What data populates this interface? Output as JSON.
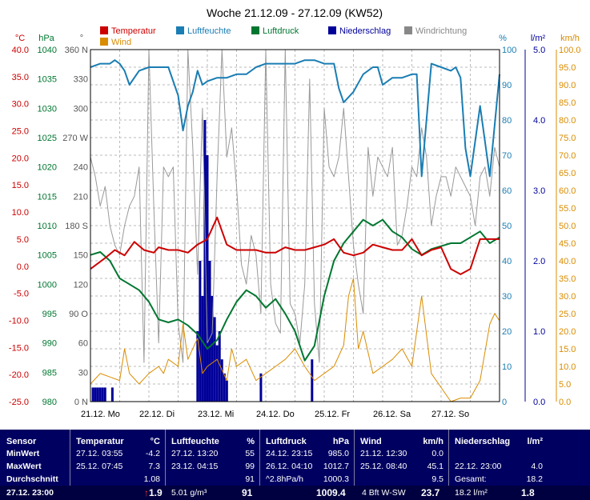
{
  "chart_data": {
    "type": "line",
    "title": "Woche 21.12.09 - 27.12.09 (KW52)",
    "legend": [
      {
        "name": "Temperatur",
        "color": "#cc0000"
      },
      {
        "name": "Luftfeuchte",
        "color": "#1a7db3"
      },
      {
        "name": "Luftdruck",
        "color": "#007730"
      },
      {
        "name": "Niederschlag",
        "color": "#000099"
      },
      {
        "name": "Windrichtung",
        "color": "#888888"
      },
      {
        "name": "Wind",
        "color": "#d98c00"
      }
    ],
    "axes": {
      "temp": {
        "unit": "°C",
        "ticks": [
          "40.0",
          "35.0",
          "30.0",
          "25.0",
          "20.0",
          "15.0",
          "10.0",
          "5.0",
          "0.0",
          "-5.0",
          "-10.0",
          "-15.0",
          "-20.0",
          "-25.0"
        ],
        "range": [
          -25,
          40
        ],
        "color": "#cc0000"
      },
      "press": {
        "unit": "hPa",
        "ticks": [
          "1040",
          "1035",
          "1030",
          "1025",
          "1020",
          "1015",
          "1010",
          "1005",
          "1000",
          "995",
          "990",
          "985",
          "980"
        ],
        "range": [
          980,
          1040
        ],
        "color": "#007730"
      },
      "dir": {
        "unit": "°",
        "ticks": [
          "360 N",
          "330",
          "300",
          "270 W",
          "240",
          "210",
          "180 S",
          "150",
          "120",
          "90 O",
          "60",
          "30",
          "0 N"
        ],
        "range": [
          0,
          360
        ],
        "color": "#555555"
      },
      "hum": {
        "unit": "%",
        "ticks": [
          "100",
          "90",
          "80",
          "70",
          "60",
          "50",
          "40",
          "30",
          "20",
          "10",
          "0"
        ],
        "range": [
          0,
          100
        ],
        "color": "#1a7db3"
      },
      "rain": {
        "unit": "l/m²",
        "ticks": [
          "5.0",
          "4.0",
          "3.0",
          "2.0",
          "1.0",
          "0.0"
        ],
        "range": [
          0,
          5
        ],
        "color": "#000099"
      },
      "wind": {
        "unit": "km/h",
        "ticks": [
          "100.0",
          "95.0",
          "90.0",
          "85.0",
          "80.0",
          "75.0",
          "70.0",
          "65.0",
          "60.0",
          "55.0",
          "50.0",
          "45.0",
          "40.0",
          "35.0",
          "30.0",
          "25.0",
          "20.0",
          "15.0",
          "10.0",
          "5.0",
          "0.0"
        ],
        "range": [
          0,
          100
        ],
        "color": "#d98c00"
      },
      "x": {
        "labels": [
          "21.12.  Mo",
          "22.12.  Di",
          "23.12.  Mi",
          "24.12.  Do",
          "25.12.  Fr",
          "26.12.  Sa",
          "27.12.  So"
        ],
        "range": [
          0,
          168
        ]
      }
    },
    "series": {
      "temperature": {
        "name": "Temperatur",
        "x": [
          0,
          6,
          10,
          14,
          18,
          22,
          26,
          28,
          32,
          36,
          40,
          44,
          48,
          52,
          56,
          60,
          64,
          68,
          72,
          76,
          80,
          84,
          88,
          92,
          96,
          100,
          104,
          108,
          112,
          116,
          120,
          124,
          128,
          132,
          136,
          140,
          144,
          148,
          152,
          156,
          160,
          164,
          168
        ],
        "y": [
          -0.5,
          1.5,
          3,
          2,
          4.5,
          3,
          2.5,
          3.5,
          3,
          3,
          2.5,
          4,
          5,
          9,
          4,
          3,
          3,
          3,
          2.5,
          2.5,
          3.5,
          3,
          3,
          3.5,
          4,
          5,
          2.5,
          2,
          2.5,
          4,
          3.5,
          3,
          3,
          5,
          2,
          3,
          3.5,
          -0.5,
          -1.5,
          -0.5,
          5,
          5,
          5
        ]
      },
      "humidity": {
        "name": "Luftfeuchte",
        "x": [
          0,
          4,
          8,
          10,
          12,
          14,
          16,
          20,
          24,
          28,
          32,
          36,
          38,
          40,
          42,
          44,
          46,
          48,
          52,
          56,
          60,
          64,
          68,
          72,
          76,
          80,
          84,
          88,
          92,
          96,
          100,
          102,
          104,
          108,
          112,
          116,
          118,
          120,
          124,
          128,
          132,
          134,
          136,
          140,
          144,
          148,
          150,
          152,
          154,
          156,
          158,
          160,
          164,
          168
        ],
        "y": [
          95,
          96,
          96,
          97,
          96,
          94,
          90,
          94,
          95,
          95,
          95,
          87,
          77,
          84,
          88,
          94,
          90,
          91,
          92,
          92,
          93,
          93,
          95,
          96,
          96,
          96,
          96,
          97,
          97,
          96,
          96,
          89,
          85,
          88,
          93,
          95,
          95,
          90,
          92,
          92,
          93,
          93,
          64,
          96,
          95,
          94,
          95,
          92,
          72,
          64,
          74,
          84,
          64,
          93
        ]
      },
      "pressure": {
        "name": "Luftdruck",
        "x": [
          0,
          4,
          8,
          12,
          16,
          20,
          24,
          28,
          32,
          36,
          40,
          44,
          48,
          52,
          56,
          60,
          64,
          68,
          72,
          76,
          80,
          84,
          88,
          92,
          96,
          100,
          104,
          108,
          112,
          116,
          120,
          124,
          128,
          132,
          136,
          140,
          144,
          148,
          152,
          156,
          160,
          164,
          168
        ],
        "y": [
          1005,
          1005.5,
          1004,
          1001,
          1000,
          999,
          997,
          994,
          993.5,
          994,
          993,
          991.5,
          989,
          990.5,
          994,
          997,
          999,
          998,
          996,
          997.5,
          995,
          992,
          987,
          989.5,
          998,
          1004,
          1007,
          1009,
          1011,
          1010,
          1011,
          1009,
          1008,
          1006,
          1005,
          1006,
          1006.5,
          1007,
          1007,
          1008,
          1009,
          1007,
          1008
        ]
      },
      "wind_speed": {
        "name": "Wind",
        "x": [
          0,
          4,
          8,
          12,
          14,
          16,
          20,
          24,
          28,
          30,
          32,
          36,
          38,
          40,
          44,
          46,
          48,
          52,
          56,
          58,
          60,
          64,
          68,
          72,
          76,
          80,
          84,
          88,
          92,
          96,
          100,
          104,
          106,
          108,
          110,
          112,
          116,
          120,
          124,
          128,
          132,
          136,
          140,
          144,
          148,
          152,
          156,
          160,
          164,
          166,
          168
        ],
        "y": [
          5,
          8,
          7,
          6,
          15,
          8,
          5,
          8,
          10,
          8,
          12,
          10,
          22,
          12,
          18,
          8,
          10,
          12,
          6,
          15,
          10,
          12,
          6,
          8,
          10,
          12,
          15,
          10,
          6,
          8,
          10,
          16,
          30,
          35,
          15,
          20,
          8,
          10,
          12,
          15,
          10,
          30,
          8,
          4,
          0,
          1,
          1,
          6,
          22,
          25,
          23
        ]
      },
      "wind_direction": {
        "name": "Windrichtung",
        "x": [
          0,
          2,
          4,
          6,
          8,
          10,
          12,
          14,
          16,
          18,
          20,
          22,
          24,
          26,
          28,
          30,
          32,
          34,
          36,
          38,
          40,
          42,
          44,
          46,
          48,
          50,
          52,
          54,
          56,
          58,
          60,
          62,
          64,
          66,
          68,
          70,
          72,
          74,
          76,
          78,
          80,
          82,
          84,
          86,
          88,
          90,
          92,
          94,
          96,
          98,
          100,
          102,
          104,
          106,
          108,
          110,
          112,
          114,
          116,
          118,
          120,
          122,
          124,
          126,
          128,
          130,
          132,
          134,
          136,
          138,
          140,
          142,
          144,
          146,
          148,
          150,
          152,
          154,
          156,
          158,
          160,
          162,
          164,
          166,
          168
        ],
        "y": [
          250,
          230,
          200,
          220,
          180,
          160,
          150,
          180,
          200,
          210,
          240,
          40,
          360,
          200,
          60,
          240,
          230,
          240,
          80,
          40,
          360,
          260,
          130,
          300,
          60,
          70,
          230,
          360,
          250,
          280,
          220,
          140,
          120,
          170,
          150,
          90,
          360,
          120,
          80,
          70,
          360,
          100,
          90,
          60,
          120,
          330,
          100,
          40,
          300,
          240,
          230,
          250,
          300,
          230,
          160,
          120,
          90,
          260,
          210,
          250,
          240,
          230,
          260,
          160,
          170,
          200,
          240,
          230,
          280,
          250,
          180,
          210,
          230,
          230,
          210,
          240,
          230,
          220,
          210,
          180,
          230,
          240,
          210,
          260,
          240
        ]
      },
      "rain": {
        "name": "Niederschlag",
        "x": [
          1,
          2,
          3,
          4,
          5,
          6,
          9,
          44,
          45,
          46,
          47,
          48,
          49,
          50,
          51,
          52,
          53,
          54,
          55,
          56,
          70,
          91
        ],
        "y": [
          0.2,
          0.2,
          0.2,
          0.2,
          0.2,
          0.2,
          0.2,
          1.0,
          2.0,
          1.5,
          4.0,
          3.5,
          2.0,
          1.5,
          1.2,
          0.8,
          1.0,
          0.6,
          0.4,
          0.3,
          0.4,
          0.6
        ]
      }
    }
  },
  "summary": {
    "headers": {
      "sensor": "Sensor",
      "temp": "Temperatur",
      "temp_unit": "°C",
      "hum": "Luftfeuchte",
      "hum_unit": "%",
      "press": "Luftdruck",
      "press_unit": "hPa",
      "wind": "Wind",
      "wind_unit": "km/h",
      "rain": "Niederschlag",
      "rain_unit": "l/m²"
    },
    "row_labels": {
      "min": "MinWert",
      "max": "MaxWert",
      "avg": "Durchschnitt",
      "now": "27.12. 23:00"
    },
    "temp": {
      "min_time": "27.12.  03:55",
      "min_val": "-4.2",
      "max_time": "25.12.  07:45",
      "max_val": "7.3",
      "avg": "1.08",
      "now": "1.9"
    },
    "hum": {
      "min_time": "27.12.  13:20",
      "min_val": "55",
      "max_time": "23.12.  04:15",
      "max_val": "99",
      "avg": "91",
      "now_extra": "5.01 g/m³",
      "now": "91"
    },
    "press": {
      "min_time": "24.12.  23:15",
      "min_val": "985.0",
      "max_time": "26.12.  04:10",
      "max_val": "1012.7",
      "avg_label": "^2.8hPa/h",
      "avg": "1000.3",
      "now": "1009.4"
    },
    "wind": {
      "min_time": "21.12.  12:30",
      "min_val": "0.0",
      "max_time": "25.12.  08:40",
      "max_val": "45.1",
      "avg": "9.5",
      "now_extra": "4 Bft W-SW",
      "now": "23.7"
    },
    "rain": {
      "max_time": "22.12.  23:00",
      "max_val": "4.0",
      "avg_label": "Gesamt:",
      "avg": "18.2",
      "now_extra": "18.2 l/m²",
      "now": "1.8"
    }
  }
}
